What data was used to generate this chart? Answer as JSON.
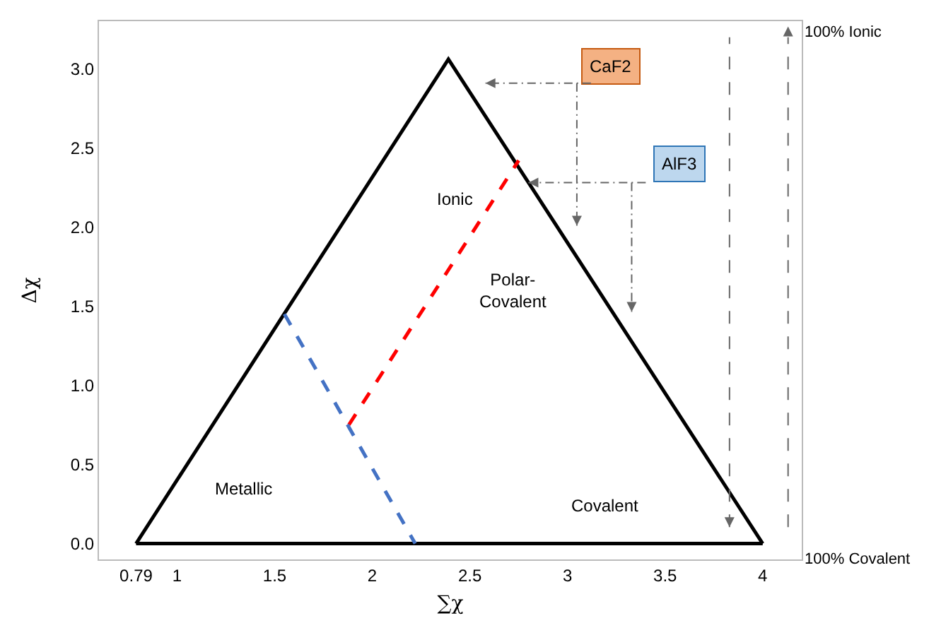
{
  "chart_data": {
    "type": "line",
    "xlabel": "∑χ",
    "ylabel": "Δχ",
    "xlim": [
      0.6,
      4.2
    ],
    "xticks": [
      0.79,
      1.0,
      1.5,
      2.0,
      2.5,
      3.0,
      3.5,
      4.0
    ],
    "ylim": [
      -0.1,
      3.3
    ],
    "yticks": [
      {
        "value": 0,
        "label": "0.0"
      },
      0.5,
      {
        "value": 1,
        "label": "1.0"
      },
      1.5,
      {
        "value": 2,
        "label": "2.0"
      },
      2.5,
      {
        "value": 3,
        "label": "3.0"
      }
    ],
    "grid": false,
    "marker": "none",
    "series": [
      {
        "color": "#000000",
        "line_style": "solid",
        "x": [
          0.79,
          2.39,
          4.0
        ],
        "values": [
          0,
          3.06,
          0
        ]
      },
      {
        "color": "#000000",
        "line_style": "solid",
        "x": [
          0.79,
          4.0
        ],
        "values": [
          0,
          0
        ]
      },
      {
        "color": "#ff0000",
        "line_style": "dashed",
        "x": [
          1.88,
          2.75
        ],
        "values": [
          0.75,
          2.42
        ]
      },
      {
        "color": "#4472c4",
        "line_style": "dashed",
        "x": [
          1.55,
          2.22
        ],
        "values": [
          1.45,
          0
        ]
      }
    ],
    "ref_lines": [
      {
        "axis": "x",
        "value": 3.83,
        "color": "#666666",
        "line_style": "dashed"
      },
      {
        "axis": "x",
        "value": 4.13,
        "color": "#666666",
        "line_style": "dashed"
      }
    ],
    "annotations": [
      "Ionic",
      "Polar-\nCovalent",
      "Metallic",
      "Covalent",
      "CaF2",
      {
        "text": "AlF3",
        "x": 2.8,
        "y": 2.28
      },
      "100% Ionic",
      "100% Covalent"
    ]
  }
}
